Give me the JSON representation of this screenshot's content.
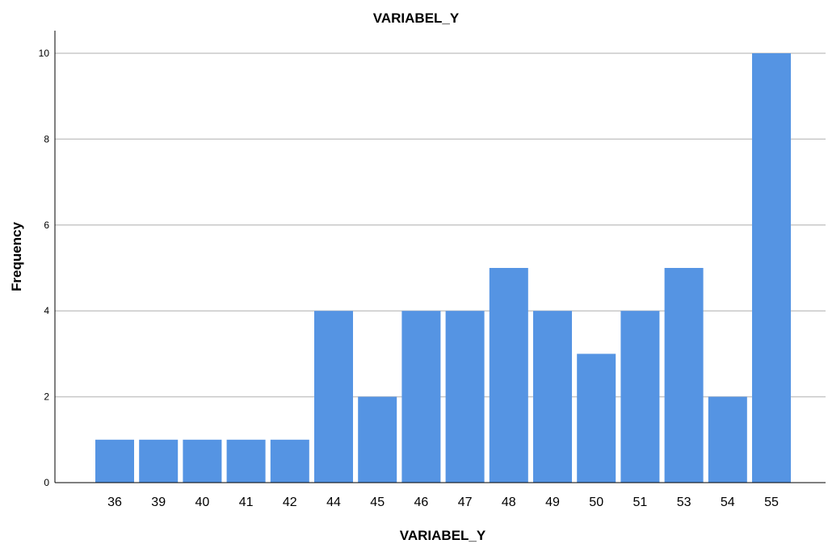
{
  "chart_data": {
    "type": "bar",
    "title": "VARIABEL_Y",
    "xlabel": "VARIABEL_Y",
    "ylabel": "Frequency",
    "categories": [
      "36",
      "39",
      "40",
      "41",
      "42",
      "44",
      "45",
      "46",
      "47",
      "48",
      "49",
      "50",
      "51",
      "53",
      "54",
      "55"
    ],
    "values": [
      1,
      1,
      1,
      1,
      1,
      4,
      2,
      4,
      4,
      5,
      4,
      3,
      4,
      5,
      2,
      10
    ],
    "ylim": [
      0,
      10
    ],
    "yticks": [
      0,
      2,
      4,
      6,
      8,
      10
    ],
    "grid": true,
    "legend": "none",
    "bar_color": "#5594e3",
    "grid_color": "#c8c8c8"
  }
}
